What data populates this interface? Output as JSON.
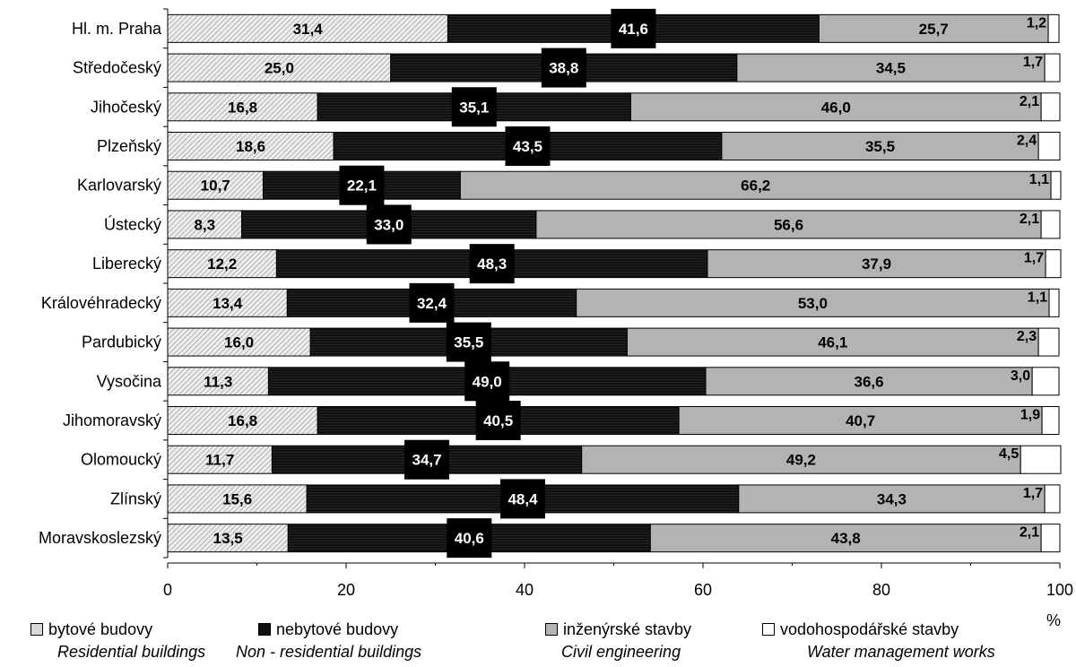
{
  "chart_data": {
    "type": "bar",
    "orientation": "horizontal",
    "stacked": true,
    "categories": [
      "Hl. m. Praha",
      "Středočeský",
      "Jihočeský",
      "Plzeňský",
      "Karlovarský",
      "Ústecký",
      "Liberecký",
      "Královéhradecký",
      "Pardubický",
      "Vysočina",
      "Jihomoravský",
      "Olomoucký",
      "Zlínský",
      "Moravskoslezský"
    ],
    "series": [
      {
        "name": "bytové budovy",
        "values": [
          31.4,
          25.0,
          16.8,
          18.6,
          10.7,
          8.3,
          12.2,
          13.4,
          16.0,
          11.3,
          16.8,
          11.7,
          15.6,
          13.5
        ],
        "color": "#d9d9d9",
        "pattern": "hatch-light"
      },
      {
        "name": "nebytové budovy",
        "values": [
          41.6,
          38.8,
          35.1,
          43.5,
          22.1,
          33.0,
          48.3,
          32.4,
          35.5,
          49.0,
          40.5,
          34.7,
          48.4,
          40.6
        ],
        "color": "#111111",
        "pattern": "hatch-dark"
      },
      {
        "name": "inženýrské stavby",
        "values": [
          25.7,
          34.5,
          46.0,
          35.5,
          66.2,
          56.6,
          37.9,
          53.0,
          46.1,
          36.6,
          40.7,
          49.2,
          34.3,
          43.8
        ],
        "color": "#b3b3b3",
        "pattern": "solid"
      },
      {
        "name": "vodohospodářské stavby",
        "values": [
          1.2,
          1.7,
          2.1,
          2.4,
          1.1,
          2.1,
          1.7,
          1.1,
          2.3,
          3.0,
          1.9,
          4.5,
          1.7,
          2.1
        ],
        "color": "#ffffff",
        "pattern": "solid"
      }
    ],
    "value_labels": [
      [
        "31,4",
        "25,0",
        "16,8",
        "18,6",
        "10,7",
        "8,3",
        "12,2",
        "13,4",
        "16,0",
        "11,3",
        "16,8",
        "11,7",
        "15,6",
        "13,5"
      ],
      [
        "41,6",
        "38,8",
        "35,1",
        "43,5",
        "22,1",
        "33,0",
        "48,3",
        "32,4",
        "35,5",
        "49,0",
        "40,5",
        "34,7",
        "48,4",
        "40,6"
      ],
      [
        "25,7",
        "34,5",
        "46,0",
        "35,5",
        "66,2",
        "56,6",
        "37,9",
        "53,0",
        "46,1",
        "36,6",
        "40,7",
        "49,2",
        "34,3",
        "43,8"
      ],
      [
        "1,2",
        "1,7",
        "2,1",
        "2,4",
        "1,1",
        "2,1",
        "1,7",
        "1,1",
        "2,3",
        "3,0",
        "1,9",
        "4,5",
        "1,7",
        "2,1"
      ]
    ],
    "x_ticks": [
      0,
      20,
      40,
      60,
      80,
      100
    ],
    "xlim": [
      0,
      100
    ],
    "x_unit": "%",
    "grid": false,
    "legend_position": "bottom"
  },
  "legend": [
    {
      "cz": "bytové budovy",
      "en": "Residential buildings"
    },
    {
      "cz": "nebytové budovy",
      "en": "Non - residential buildings"
    },
    {
      "cz": "inženýrské stavby",
      "en": "Civil engineering"
    },
    {
      "cz": "vodohospodářské stavby",
      "en": "Water management works"
    }
  ]
}
